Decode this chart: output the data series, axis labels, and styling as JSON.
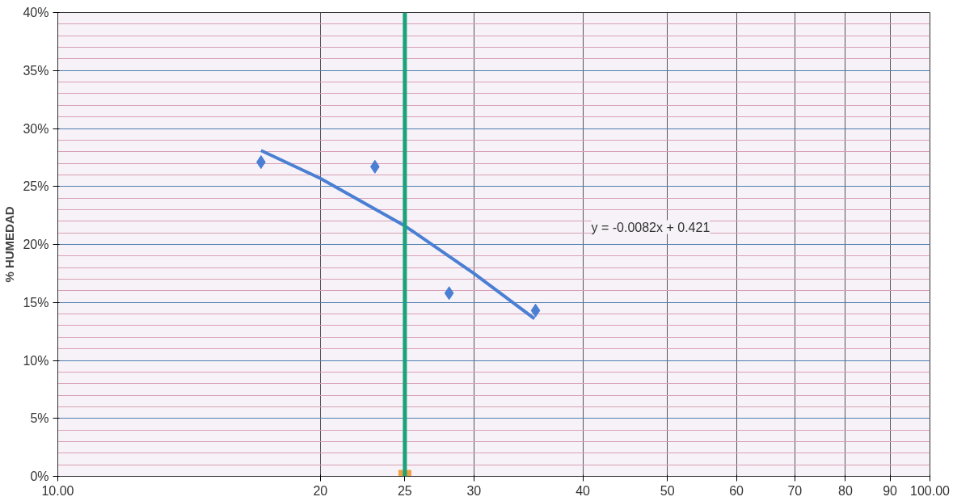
{
  "chart_data": {
    "type": "scatter",
    "ylabel": "% HUMEDAD",
    "log": "x",
    "grid": true,
    "xlim": [
      10,
      100
    ],
    "xticks": [
      {
        "value": 10,
        "label": "10.00"
      },
      20,
      25,
      30,
      40,
      50,
      60,
      70,
      80,
      90,
      {
        "value": 100,
        "label": "100.00"
      }
    ],
    "ylim": [
      0,
      40
    ],
    "yticks": [
      {
        "value": 0,
        "label": "0%"
      },
      {
        "value": 5,
        "label": "5%"
      },
      {
        "value": 10,
        "label": "10%"
      },
      {
        "value": 15,
        "label": "15%"
      },
      {
        "value": 20,
        "label": "20%"
      },
      {
        "value": 25,
        "label": "25%"
      },
      {
        "value": 30,
        "label": "30%"
      },
      {
        "value": 35,
        "label": "35%"
      },
      {
        "value": 40,
        "label": "40%"
      }
    ],
    "series": [
      {
        "marker": "diamond",
        "color": "#4a7fd4",
        "x": [
          17.1,
          23.1,
          28.1,
          35.3
        ],
        "values": [
          27.1,
          26.7,
          15.8,
          14.3
        ]
      },
      {
        "type": "line",
        "marker": "none",
        "color": "#4a7fd4",
        "x": [
          17.1,
          20,
          25,
          30,
          35.2
        ],
        "values": [
          28.1,
          25.7,
          21.6,
          17.5,
          13.6
        ]
      },
      {
        "marker": "square",
        "color": "#f0a040",
        "x": [
          25
        ],
        "values": [
          0
        ]
      }
    ],
    "ref_lines": [
      {
        "axis": "x",
        "value": 25,
        "color": "#1aa37a"
      }
    ],
    "annotations": [
      "y = -0.0082x + 0.421"
    ]
  }
}
